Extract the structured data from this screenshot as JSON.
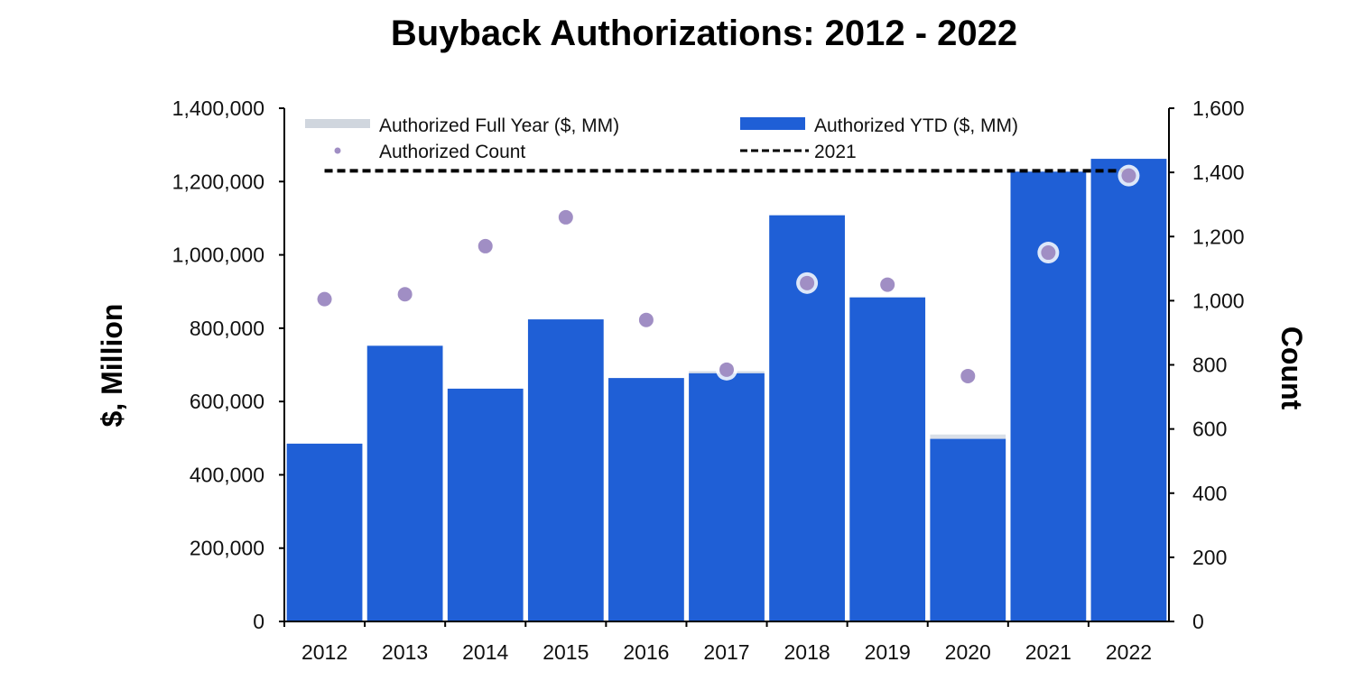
{
  "chart_data": {
    "type": "bar",
    "title": "Buyback Authorizations: 2012 - 2022",
    "ylabel": "$, Million",
    "y2label": "Count",
    "categories": [
      "2012",
      "2013",
      "2014",
      "2015",
      "2016",
      "2017",
      "2018",
      "2019",
      "2020",
      "2021",
      "2022"
    ],
    "ylim": [
      0,
      1400000
    ],
    "y2lim": [
      0,
      1600
    ],
    "yticks": [
      0,
      200000,
      400000,
      600000,
      800000,
      1000000,
      1200000,
      1400000
    ],
    "ytick_labels": [
      "0",
      "200,000",
      "400,000",
      "600,000",
      "800,000",
      "1,000,000",
      "1,200,000",
      "1,400,000"
    ],
    "y2ticks": [
      0,
      200,
      400,
      600,
      800,
      1000,
      1200,
      1400,
      1600
    ],
    "y2tick_labels": [
      "0",
      "200",
      "400",
      "600",
      "800",
      "1,000",
      "1,200",
      "1,400",
      "1,600"
    ],
    "legend_placement": "top",
    "legend": [
      {
        "label": "Authorized Full Year ($, MM)",
        "kind": "bar-light"
      },
      {
        "label": "Authorized YTD ($, MM)",
        "kind": "bar"
      },
      {
        "label": "Authorized Count",
        "kind": "dot"
      },
      {
        "label": "2021",
        "kind": "dashed"
      }
    ],
    "series": [
      {
        "name": "Authorized Full Year ($, MM)",
        "values": [
          485000,
          752000,
          635000,
          824000,
          664000,
          683000,
          1108000,
          884000,
          510000,
          1227000,
          1262000
        ],
        "color": "#d9dfe8"
      },
      {
        "name": "Authorized YTD ($, MM)",
        "values": [
          485000,
          752000,
          635000,
          824000,
          664000,
          677000,
          1108000,
          884000,
          498000,
          1227000,
          1262000
        ],
        "color": "#1f5fd6"
      },
      {
        "name": "Authorized Count",
        "axis": "right",
        "values": [
          1005,
          1020,
          1170,
          1260,
          940,
          785,
          1055,
          1050,
          765,
          1150,
          1390
        ],
        "color": "#a08ec4"
      },
      {
        "name": "2021",
        "axis": "right",
        "type": "dashed-line",
        "value": 1405,
        "x_from": "2012",
        "x_to": "2022",
        "color": "#000000"
      }
    ],
    "grid": false
  }
}
